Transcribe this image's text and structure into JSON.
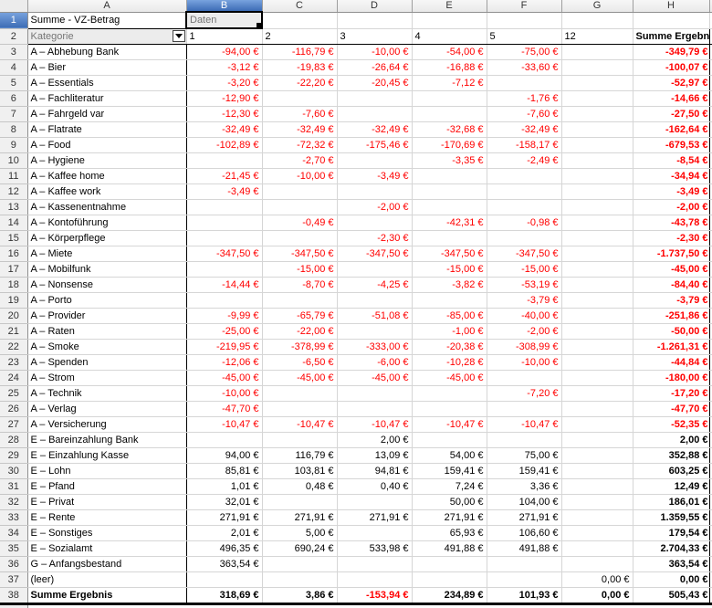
{
  "sheet": {
    "column_headers": [
      "A",
      "B",
      "C",
      "D",
      "E",
      "F",
      "G",
      "H"
    ],
    "row1_num": "1",
    "row2_num": "2",
    "selected": {
      "cell_ref": "B1",
      "column": "B",
      "row": "1"
    }
  },
  "colors": {
    "negative_value": "#ff0000",
    "selection_highlight": "#3c6cb5",
    "pivot_header_bg": "#ececec",
    "pivot_header_text": "#757575",
    "grid_line": "#d6d6d6",
    "pivot_border": "#000000"
  },
  "pivot": {
    "a1_label": "Summe - VZ-Betrag",
    "b1_label": "Daten",
    "row_field_label": "Kategorie",
    "filter_icon": "chevron-down-icon",
    "period_labels": [
      "1",
      "2",
      "3",
      "4",
      "5",
      "12"
    ],
    "result_col_label": "Summe Ergebnis",
    "rows": [
      {
        "n": "3",
        "label": "A – Abhebung Bank",
        "v": [
          "-94,00 €",
          "-116,79 €",
          "-10,00 €",
          "-54,00 €",
          "-75,00 €",
          ""
        ],
        "t": "-349,79 €"
      },
      {
        "n": "4",
        "label": "A – Bier",
        "v": [
          "-3,12 €",
          "-19,83 €",
          "-26,64 €",
          "-16,88 €",
          "-33,60 €",
          ""
        ],
        "t": "-100,07 €"
      },
      {
        "n": "5",
        "label": "A – Essentials",
        "v": [
          "-3,20 €",
          "-22,20 €",
          "-20,45 €",
          "-7,12 €",
          "",
          ""
        ],
        "t": "-52,97 €"
      },
      {
        "n": "6",
        "label": "A – Fachliteratur",
        "v": [
          "-12,90 €",
          "",
          "",
          "",
          "-1,76 €",
          ""
        ],
        "t": "-14,66 €"
      },
      {
        "n": "7",
        "label": "A – Fahrgeld var",
        "v": [
          "-12,30 €",
          "-7,60 €",
          "",
          "",
          "-7,60 €",
          ""
        ],
        "t": "-27,50 €"
      },
      {
        "n": "8",
        "label": "A – Flatrate",
        "v": [
          "-32,49 €",
          "-32,49 €",
          "-32,49 €",
          "-32,68 €",
          "-32,49 €",
          ""
        ],
        "t": "-162,64 €"
      },
      {
        "n": "9",
        "label": "A – Food",
        "v": [
          "-102,89 €",
          "-72,32 €",
          "-175,46 €",
          "-170,69 €",
          "-158,17 €",
          ""
        ],
        "t": "-679,53 €"
      },
      {
        "n": "10",
        "label": "A – Hygiene",
        "v": [
          "",
          "-2,70 €",
          "",
          "-3,35 €",
          "-2,49 €",
          ""
        ],
        "t": "-8,54 €"
      },
      {
        "n": "11",
        "label": "A – Kaffee home",
        "v": [
          "-21,45 €",
          "-10,00 €",
          "-3,49 €",
          "",
          "",
          ""
        ],
        "t": "-34,94 €"
      },
      {
        "n": "12",
        "label": "A – Kaffee work",
        "v": [
          "-3,49 €",
          "",
          "",
          "",
          "",
          ""
        ],
        "t": "-3,49 €"
      },
      {
        "n": "13",
        "label": "A – Kassenentnahme",
        "v": [
          "",
          "",
          "-2,00 €",
          "",
          "",
          ""
        ],
        "t": "-2,00 €"
      },
      {
        "n": "14",
        "label": "A – Kontoführung",
        "v": [
          "",
          "-0,49 €",
          "",
          "-42,31 €",
          "-0,98 €",
          ""
        ],
        "t": "-43,78 €"
      },
      {
        "n": "15",
        "label": "A – Körperpflege",
        "v": [
          "",
          "",
          "-2,30 €",
          "",
          "",
          ""
        ],
        "t": "-2,30 €"
      },
      {
        "n": "16",
        "label": "A – Miete",
        "v": [
          "-347,50 €",
          "-347,50 €",
          "-347,50 €",
          "-347,50 €",
          "-347,50 €",
          ""
        ],
        "t": "-1.737,50 €"
      },
      {
        "n": "17",
        "label": "A – Mobilfunk",
        "v": [
          "",
          "-15,00 €",
          "",
          "-15,00 €",
          "-15,00 €",
          ""
        ],
        "t": "-45,00 €"
      },
      {
        "n": "18",
        "label": "A – Nonsense",
        "v": [
          "-14,44 €",
          "-8,70 €",
          "-4,25 €",
          "-3,82 €",
          "-53,19 €",
          ""
        ],
        "t": "-84,40 €"
      },
      {
        "n": "19",
        "label": "A – Porto",
        "v": [
          "",
          "",
          "",
          "",
          "-3,79 €",
          ""
        ],
        "t": "-3,79 €"
      },
      {
        "n": "20",
        "label": "A – Provider",
        "v": [
          "-9,99 €",
          "-65,79 €",
          "-51,08 €",
          "-85,00 €",
          "-40,00 €",
          ""
        ],
        "t": "-251,86 €"
      },
      {
        "n": "21",
        "label": "A – Raten",
        "v": [
          "-25,00 €",
          "-22,00 €",
          "",
          "-1,00 €",
          "-2,00 €",
          ""
        ],
        "t": "-50,00 €"
      },
      {
        "n": "22",
        "label": "A – Smoke",
        "v": [
          "-219,95 €",
          "-378,99 €",
          "-333,00 €",
          "-20,38 €",
          "-308,99 €",
          ""
        ],
        "t": "-1.261,31 €"
      },
      {
        "n": "23",
        "label": "A – Spenden",
        "v": [
          "-12,06 €",
          "-6,50 €",
          "-6,00 €",
          "-10,28 €",
          "-10,00 €",
          ""
        ],
        "t": "-44,84 €"
      },
      {
        "n": "24",
        "label": "A – Strom",
        "v": [
          "-45,00 €",
          "-45,00 €",
          "-45,00 €",
          "-45,00 €",
          "",
          ""
        ],
        "t": "-180,00 €"
      },
      {
        "n": "25",
        "label": "A – Technik",
        "v": [
          "-10,00 €",
          "",
          "",
          "",
          "-7,20 €",
          ""
        ],
        "t": "-17,20 €"
      },
      {
        "n": "26",
        "label": "A – Verlag",
        "v": [
          "-47,70 €",
          "",
          "",
          "",
          "",
          ""
        ],
        "t": "-47,70 €"
      },
      {
        "n": "27",
        "label": "A – Versicherung",
        "v": [
          "-10,47 €",
          "-10,47 €",
          "-10,47 €",
          "-10,47 €",
          "-10,47 €",
          ""
        ],
        "t": "-52,35 €"
      },
      {
        "n": "28",
        "label": "E – Bareinzahlung Bank",
        "v": [
          "",
          "",
          "2,00 €",
          "",
          "",
          ""
        ],
        "t": "2,00 €"
      },
      {
        "n": "29",
        "label": "E – Einzahlung Kasse",
        "v": [
          "94,00 €",
          "116,79 €",
          "13,09 €",
          "54,00 €",
          "75,00 €",
          ""
        ],
        "t": "352,88 €"
      },
      {
        "n": "30",
        "label": "E – Lohn",
        "v": [
          "85,81 €",
          "103,81 €",
          "94,81 €",
          "159,41 €",
          "159,41 €",
          ""
        ],
        "t": "603,25 €"
      },
      {
        "n": "31",
        "label": "E – Pfand",
        "v": [
          "1,01 €",
          "0,48 €",
          "0,40 €",
          "7,24 €",
          "3,36 €",
          ""
        ],
        "t": "12,49 €"
      },
      {
        "n": "32",
        "label": "E – Privat",
        "v": [
          "32,01 €",
          "",
          "",
          "50,00 €",
          "104,00 €",
          ""
        ],
        "t": "186,01 €"
      },
      {
        "n": "33",
        "label": "E – Rente",
        "v": [
          "271,91 €",
          "271,91 €",
          "271,91 €",
          "271,91 €",
          "271,91 €",
          ""
        ],
        "t": "1.359,55 €"
      },
      {
        "n": "34",
        "label": "E – Sonstiges",
        "v": [
          "2,01 €",
          "5,00 €",
          "",
          "65,93 €",
          "106,60 €",
          ""
        ],
        "t": "179,54 €"
      },
      {
        "n": "35",
        "label": "E – Sozialamt",
        "v": [
          "496,35 €",
          "690,24 €",
          "533,98 €",
          "491,88 €",
          "491,88 €",
          ""
        ],
        "t": "2.704,33 €"
      },
      {
        "n": "36",
        "label": "G – Anfangsbestand",
        "v": [
          "363,54 €",
          "",
          "",
          "",
          "",
          ""
        ],
        "t": "363,54 €"
      },
      {
        "n": "37",
        "label": "(leer)",
        "v": [
          "",
          "",
          "",
          "",
          "",
          "0,00 €"
        ],
        "t": "0,00 €"
      }
    ],
    "grand": {
      "n": "38",
      "label": "Summe Ergebnis",
      "v": [
        "318,69 €",
        "3,86 €",
        "-153,94 €",
        "234,89 €",
        "101,93 €",
        "0,00 €"
      ],
      "t": "505,43 €"
    }
  }
}
